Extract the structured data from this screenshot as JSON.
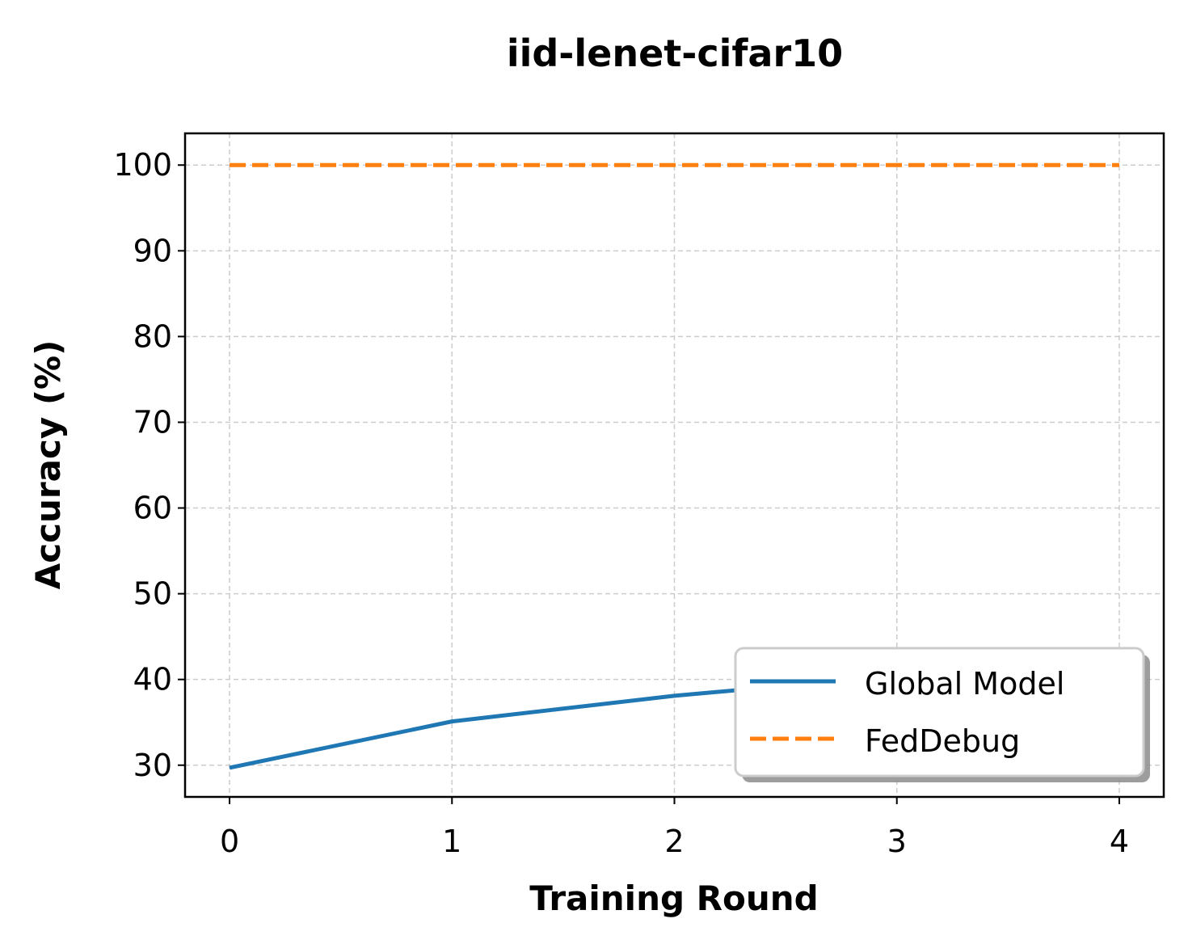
{
  "chart_data": {
    "type": "line",
    "title": "iid-lenet-cifar10",
    "xlabel": "Training Round",
    "ylabel": "Accuracy (%)",
    "x": [
      0,
      1,
      2,
      3,
      4
    ],
    "xlim": [
      -0.2,
      4.2
    ],
    "ylim": [
      26.3,
      103.7
    ],
    "xticks": [
      "0",
      "1",
      "2",
      "3",
      "4"
    ],
    "yticks": [
      "30",
      "40",
      "50",
      "60",
      "70",
      "80",
      "90",
      "100"
    ],
    "grid": true,
    "legend_position": "lower right",
    "series": [
      {
        "name": "Global Model",
        "values": [
          29.7,
          35.1,
          38.1,
          40.4,
          42.0
        ],
        "color": "#1f77b4",
        "style": "solid"
      },
      {
        "name": "FedDebug",
        "values": [
          100,
          100,
          100,
          100,
          100
        ],
        "color": "#ff7f0e",
        "style": "dashed"
      }
    ]
  }
}
